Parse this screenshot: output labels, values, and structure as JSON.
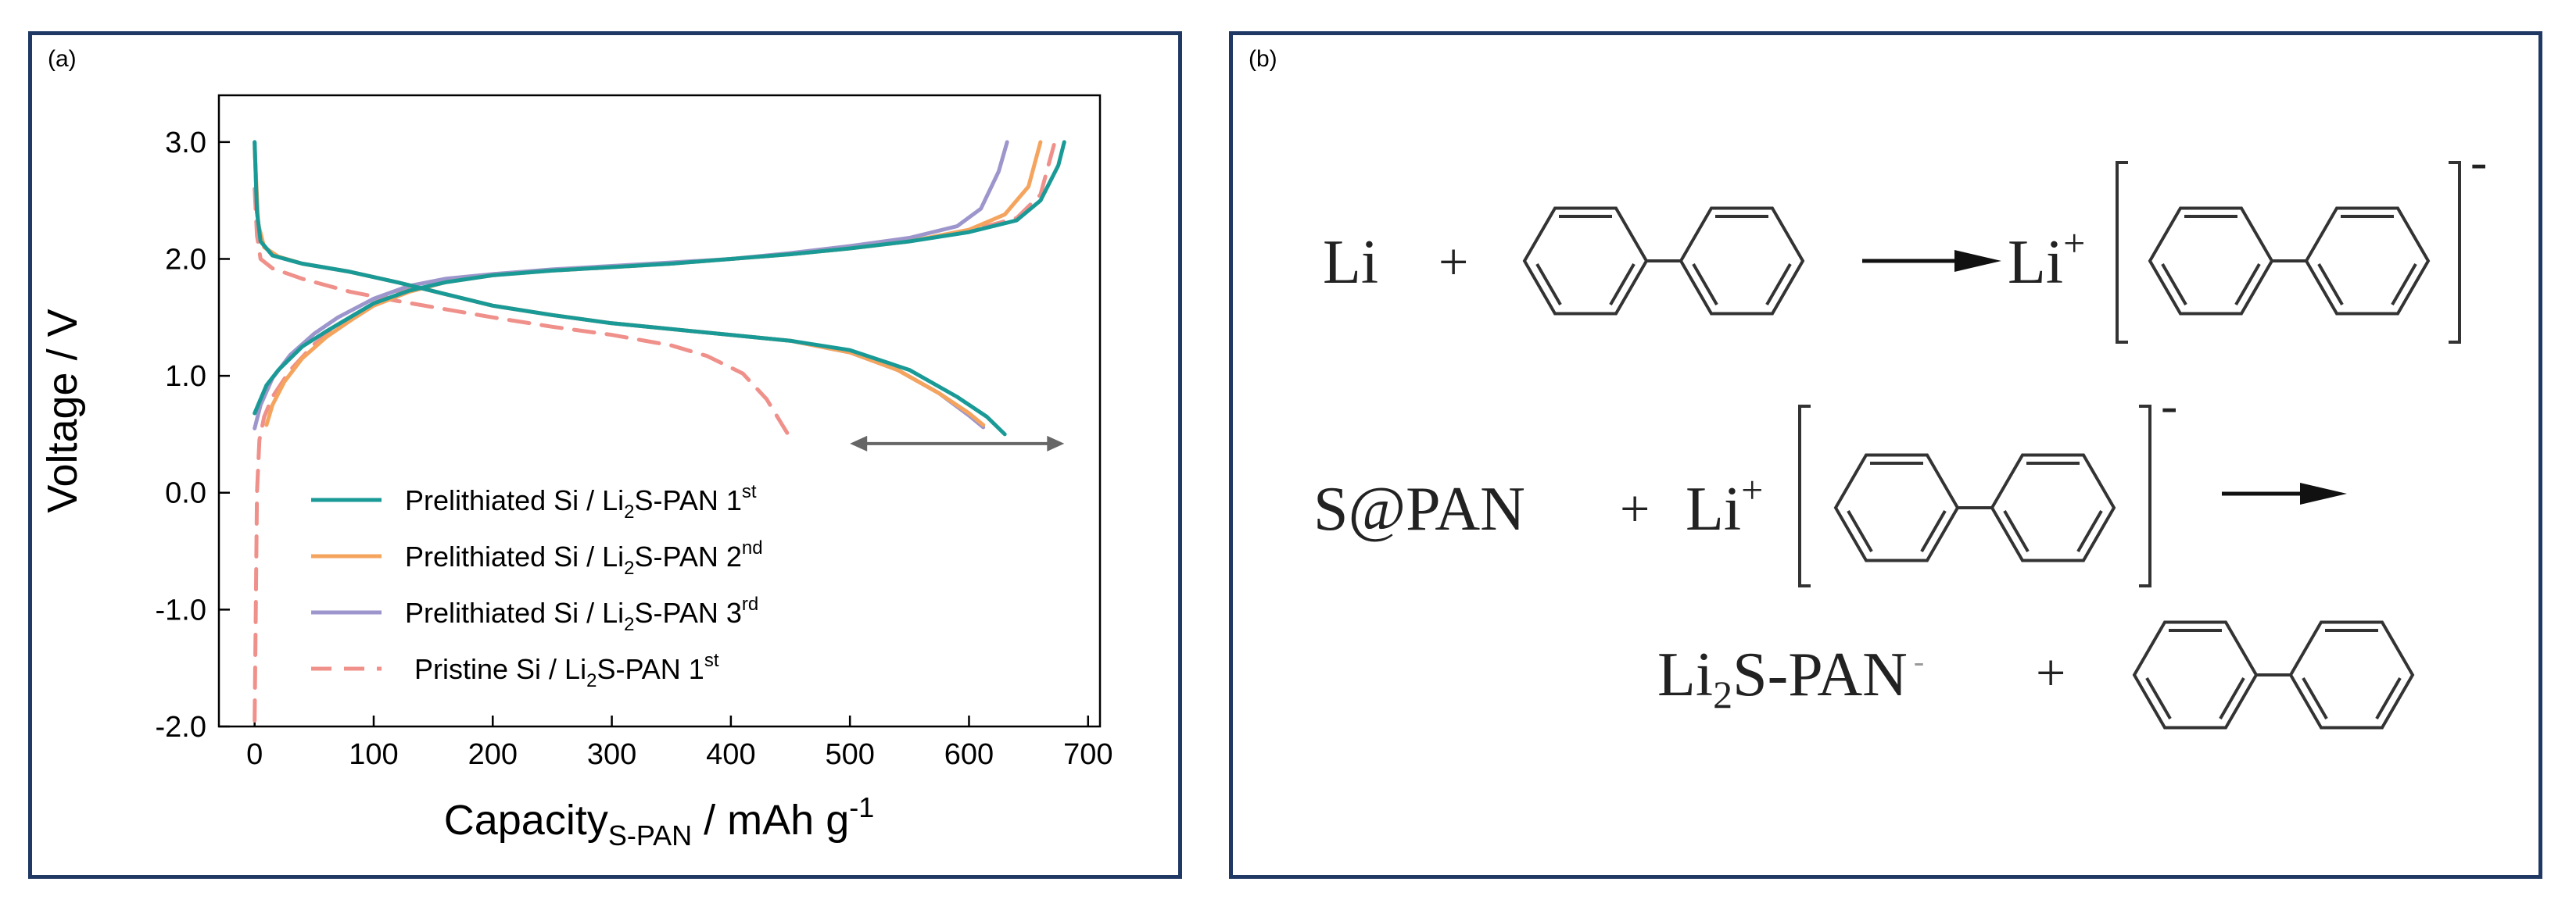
{
  "panels": {
    "a": {
      "label": "(a)"
    },
    "b": {
      "label": "(b)"
    }
  },
  "chart_data": {
    "type": "line",
    "xlabel": {
      "main": "Capacity",
      "sub": "S-PAN",
      "rest": " / mAh g",
      "sup": "-1"
    },
    "ylabel": "Voltage / V",
    "xlim": [
      -30,
      710
    ],
    "ylim": [
      -2.0,
      3.4
    ],
    "xticks": [
      0,
      100,
      200,
      300,
      400,
      500,
      600,
      700
    ],
    "xtick_labels": [
      "0",
      "100",
      "200",
      "300",
      "400",
      "500",
      "600",
      "700"
    ],
    "yticks": [
      -2.0,
      -1.0,
      0.0,
      1.0,
      2.0,
      3.0
    ],
    "ytick_labels": [
      "-2.0",
      "-1.0",
      "0.0",
      "1.0",
      "2.0",
      "3.0"
    ],
    "legend_position": "bottom-left-inside",
    "series": [
      {
        "name": {
          "main": "Prelithiated Si / Li",
          "sub": "2",
          "mid": "S-PAN 1",
          "sup": "st"
        },
        "color": "#1a9a96",
        "dash": "solid",
        "charge": [
          [
            0,
            0.68
          ],
          [
            5,
            0.8
          ],
          [
            10,
            0.92
          ],
          [
            20,
            1.05
          ],
          [
            40,
            1.25
          ],
          [
            60,
            1.38
          ],
          [
            80,
            1.5
          ],
          [
            100,
            1.62
          ],
          [
            130,
            1.73
          ],
          [
            160,
            1.8
          ],
          [
            200,
            1.86
          ],
          [
            250,
            1.9
          ],
          [
            300,
            1.93
          ],
          [
            350,
            1.96
          ],
          [
            400,
            2.0
          ],
          [
            450,
            2.04
          ],
          [
            500,
            2.09
          ],
          [
            550,
            2.15
          ],
          [
            600,
            2.23
          ],
          [
            640,
            2.33
          ],
          [
            660,
            2.5
          ],
          [
            675,
            2.8
          ],
          [
            680,
            3.0
          ]
        ],
        "discharge": [
          [
            0,
            3.0
          ],
          [
            2,
            2.4
          ],
          [
            5,
            2.15
          ],
          [
            15,
            2.03
          ],
          [
            40,
            1.96
          ],
          [
            80,
            1.89
          ],
          [
            120,
            1.8
          ],
          [
            160,
            1.7
          ],
          [
            200,
            1.6
          ],
          [
            250,
            1.52
          ],
          [
            300,
            1.45
          ],
          [
            350,
            1.4
          ],
          [
            400,
            1.35
          ],
          [
            450,
            1.3
          ],
          [
            500,
            1.22
          ],
          [
            550,
            1.05
          ],
          [
            590,
            0.82
          ],
          [
            615,
            0.65
          ],
          [
            630,
            0.5
          ]
        ]
      },
      {
        "name": {
          "main": "Prelithiated Si / Li",
          "sub": "2",
          "mid": "S-PAN 2",
          "sup": "nd"
        },
        "color": "#f5a45e",
        "dash": "solid",
        "charge": [
          [
            10,
            0.58
          ],
          [
            15,
            0.75
          ],
          [
            25,
            0.95
          ],
          [
            40,
            1.15
          ],
          [
            60,
            1.33
          ],
          [
            80,
            1.47
          ],
          [
            100,
            1.6
          ],
          [
            130,
            1.72
          ],
          [
            160,
            1.8
          ],
          [
            200,
            1.86
          ],
          [
            250,
            1.9
          ],
          [
            300,
            1.93
          ],
          [
            350,
            1.96
          ],
          [
            400,
            2.0
          ],
          [
            450,
            2.04
          ],
          [
            500,
            2.09
          ],
          [
            550,
            2.15
          ],
          [
            600,
            2.25
          ],
          [
            630,
            2.38
          ],
          [
            650,
            2.62
          ],
          [
            660,
            3.0
          ]
        ],
        "discharge": [
          [
            0,
            2.95
          ],
          [
            3,
            2.3
          ],
          [
            8,
            2.1
          ],
          [
            20,
            2.02
          ],
          [
            40,
            1.96
          ],
          [
            80,
            1.89
          ],
          [
            120,
            1.8
          ],
          [
            160,
            1.7
          ],
          [
            200,
            1.6
          ],
          [
            250,
            1.52
          ],
          [
            300,
            1.45
          ],
          [
            350,
            1.4
          ],
          [
            400,
            1.35
          ],
          [
            450,
            1.3
          ],
          [
            500,
            1.2
          ],
          [
            540,
            1.05
          ],
          [
            575,
            0.85
          ],
          [
            600,
            0.68
          ],
          [
            612,
            0.58
          ]
        ]
      },
      {
        "name": {
          "main": "Prelithiated Si / Li",
          "sub": "2",
          "mid": "S-PAN 3",
          "sup": "rd"
        },
        "color": "#9d96cc",
        "dash": "solid",
        "charge": [
          [
            0,
            0.55
          ],
          [
            5,
            0.75
          ],
          [
            15,
            0.98
          ],
          [
            30,
            1.18
          ],
          [
            50,
            1.36
          ],
          [
            70,
            1.5
          ],
          [
            100,
            1.66
          ],
          [
            130,
            1.77
          ],
          [
            160,
            1.83
          ],
          [
            200,
            1.87
          ],
          [
            250,
            1.91
          ],
          [
            300,
            1.94
          ],
          [
            350,
            1.97
          ],
          [
            400,
            2.0
          ],
          [
            450,
            2.05
          ],
          [
            500,
            2.11
          ],
          [
            550,
            2.18
          ],
          [
            590,
            2.28
          ],
          [
            610,
            2.43
          ],
          [
            625,
            2.75
          ],
          [
            632,
            3.0
          ]
        ],
        "discharge": [
          [
            0,
            3.0
          ],
          [
            2,
            2.4
          ],
          [
            5,
            2.15
          ],
          [
            15,
            2.03
          ],
          [
            40,
            1.96
          ],
          [
            80,
            1.89
          ],
          [
            120,
            1.8
          ],
          [
            160,
            1.7
          ],
          [
            200,
            1.6
          ],
          [
            250,
            1.52
          ],
          [
            300,
            1.45
          ],
          [
            350,
            1.4
          ],
          [
            400,
            1.35
          ],
          [
            450,
            1.3
          ],
          [
            500,
            1.2
          ],
          [
            540,
            1.05
          ],
          [
            575,
            0.85
          ],
          [
            600,
            0.66
          ],
          [
            612,
            0.56
          ]
        ]
      },
      {
        "name": {
          "main": "Pristine Si / Li",
          "sub": "2",
          "mid": "S-PAN 1",
          "sup": "st"
        },
        "color": "#f0908a",
        "dash": "dashed",
        "charge": [
          [
            0,
            -1.95
          ],
          [
            1,
            -1.0
          ],
          [
            2,
            0.0
          ],
          [
            4,
            0.45
          ],
          [
            8,
            0.65
          ],
          [
            15,
            0.82
          ],
          [
            30,
            1.05
          ],
          [
            50,
            1.27
          ],
          [
            80,
            1.5
          ],
          [
            110,
            1.68
          ],
          [
            150,
            1.8
          ],
          [
            200,
            1.87
          ],
          [
            250,
            1.9
          ],
          [
            300,
            1.93
          ],
          [
            350,
            1.96
          ],
          [
            400,
            2.0
          ],
          [
            450,
            2.04
          ],
          [
            500,
            2.09
          ],
          [
            550,
            2.15
          ],
          [
            600,
            2.24
          ],
          [
            640,
            2.35
          ],
          [
            660,
            2.55
          ],
          [
            672,
            3.0
          ]
        ],
        "discharge": [
          [
            0,
            2.6
          ],
          [
            2,
            2.2
          ],
          [
            5,
            2.0
          ],
          [
            15,
            1.92
          ],
          [
            40,
            1.83
          ],
          [
            80,
            1.72
          ],
          [
            120,
            1.64
          ],
          [
            160,
            1.57
          ],
          [
            200,
            1.5
          ],
          [
            250,
            1.42
          ],
          [
            300,
            1.35
          ],
          [
            350,
            1.26
          ],
          [
            380,
            1.17
          ],
          [
            410,
            1.02
          ],
          [
            430,
            0.8
          ],
          [
            442,
            0.6
          ],
          [
            448,
            0.5
          ]
        ]
      }
    ],
    "annotations": [
      {
        "type": "double-arrow",
        "x_from": 500,
        "x_to": 680,
        "y": 0.42,
        "color": "#666666"
      }
    ]
  },
  "scheme": {
    "line1": {
      "reactant": "Li",
      "plus": "+",
      "product_cation": "Li",
      "product_charge_sup": "+",
      "bracket_charge": "-"
    },
    "line2": {
      "reactant": "S@PAN",
      "plus": "+",
      "cation": "Li",
      "cation_sup": "+",
      "bracket_charge": "-"
    },
    "line3": {
      "product_main": "Li",
      "product_sub": "2",
      "product_rest": "S-PAN",
      "product_sup": "-",
      "plus": "+"
    }
  }
}
